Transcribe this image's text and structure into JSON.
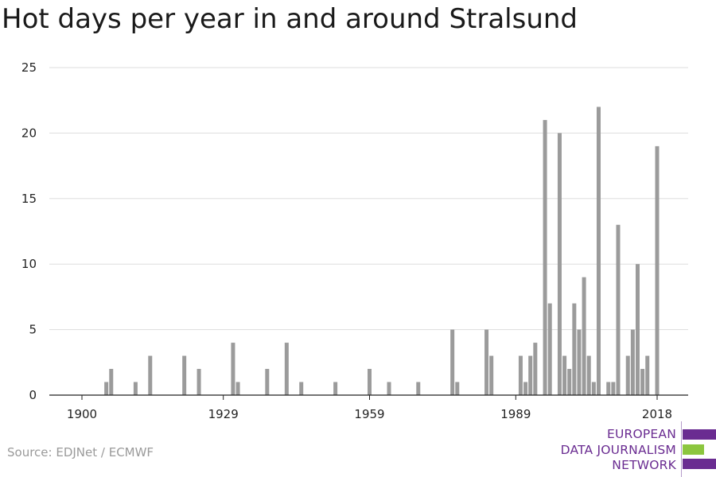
{
  "title": "Hot days per year in and around Stralsund",
  "source": "Source: EDJNet / ECMWF",
  "logo": {
    "lines": [
      "EUROPEAN",
      "DATA JOURNALISM",
      "NETWORK"
    ],
    "colors": {
      "purple": "#6a2c91",
      "green": "#8cc63f"
    }
  },
  "colors": {
    "bar": "#9b9b9b",
    "grid": "#dddddd",
    "axis": "#222222"
  },
  "chart_data": {
    "type": "bar",
    "title": "Hot days per year in and around Stralsund",
    "xlabel": "",
    "ylabel": "",
    "xlim": [
      1900,
      2018
    ],
    "ylim": [
      0,
      25
    ],
    "yticks": [
      0,
      5,
      10,
      15,
      20,
      25
    ],
    "xticks": [
      1900,
      1929,
      1959,
      1989,
      2018
    ],
    "grid": true,
    "x": [
      1905,
      1906,
      1911,
      1914,
      1921,
      1924,
      1931,
      1932,
      1938,
      1942,
      1945,
      1952,
      1959,
      1963,
      1969,
      1976,
      1977,
      1983,
      1984,
      1990,
      1991,
      1992,
      1993,
      1995,
      1996,
      1998,
      1999,
      2000,
      2001,
      2002,
      2003,
      2004,
      2005,
      2006,
      2007,
      2008,
      2009,
      2010,
      2011,
      2012,
      2013,
      2014,
      2015,
      2016,
      2018
    ],
    "values": [
      1,
      2,
      1,
      3,
      3,
      2,
      4,
      1,
      2,
      4,
      1,
      1,
      2,
      1,
      1,
      5,
      1,
      5,
      3,
      3,
      1,
      3,
      4,
      21,
      7,
      20,
      3,
      2,
      7,
      5,
      9,
      3,
      1,
      22,
      0,
      1,
      1,
      13,
      0,
      3,
      5,
      10,
      2,
      3,
      19
    ]
  }
}
